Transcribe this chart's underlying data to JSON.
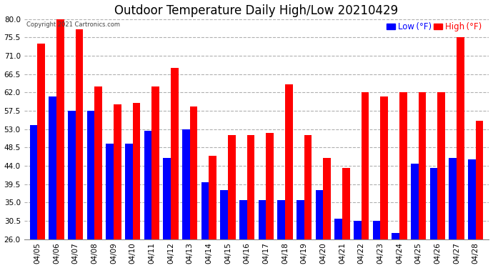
{
  "title": "Outdoor Temperature Daily High/Low 20210429",
  "copyright": "Copyright 2021 Cartronics.com",
  "dates": [
    "04/05",
    "04/06",
    "04/07",
    "04/08",
    "04/09",
    "04/10",
    "04/11",
    "04/12",
    "04/13",
    "04/14",
    "04/15",
    "04/16",
    "04/17",
    "04/18",
    "04/19",
    "04/20",
    "04/21",
    "04/22",
    "04/23",
    "04/24",
    "04/25",
    "04/26",
    "04/27",
    "04/28"
  ],
  "high": [
    74.0,
    80.0,
    77.5,
    63.5,
    59.0,
    59.5,
    63.5,
    68.0,
    58.5,
    46.5,
    51.5,
    51.5,
    52.0,
    64.0,
    51.5,
    46.0,
    43.5,
    62.0,
    61.0,
    62.0,
    62.0,
    62.0,
    75.5,
    55.0
  ],
  "low": [
    54.0,
    61.0,
    57.5,
    57.5,
    49.5,
    49.5,
    52.5,
    46.0,
    53.0,
    40.0,
    38.0,
    35.5,
    35.5,
    35.5,
    35.5,
    38.0,
    31.0,
    30.5,
    30.5,
    27.5,
    44.5,
    43.5,
    46.0,
    45.5
  ],
  "high_color": "#ff0000",
  "low_color": "#0000ff",
  "bg_color": "#ffffff",
  "grid_color": "#b0b0b0",
  "ylim_min": 26.0,
  "ylim_max": 80.0,
  "yticks": [
    26.0,
    30.5,
    35.0,
    39.5,
    44.0,
    48.5,
    53.0,
    57.5,
    62.0,
    66.5,
    71.0,
    75.5,
    80.0
  ],
  "bar_width": 0.4,
  "title_fontsize": 12,
  "tick_fontsize": 7.5,
  "legend_fontsize": 8.5
}
